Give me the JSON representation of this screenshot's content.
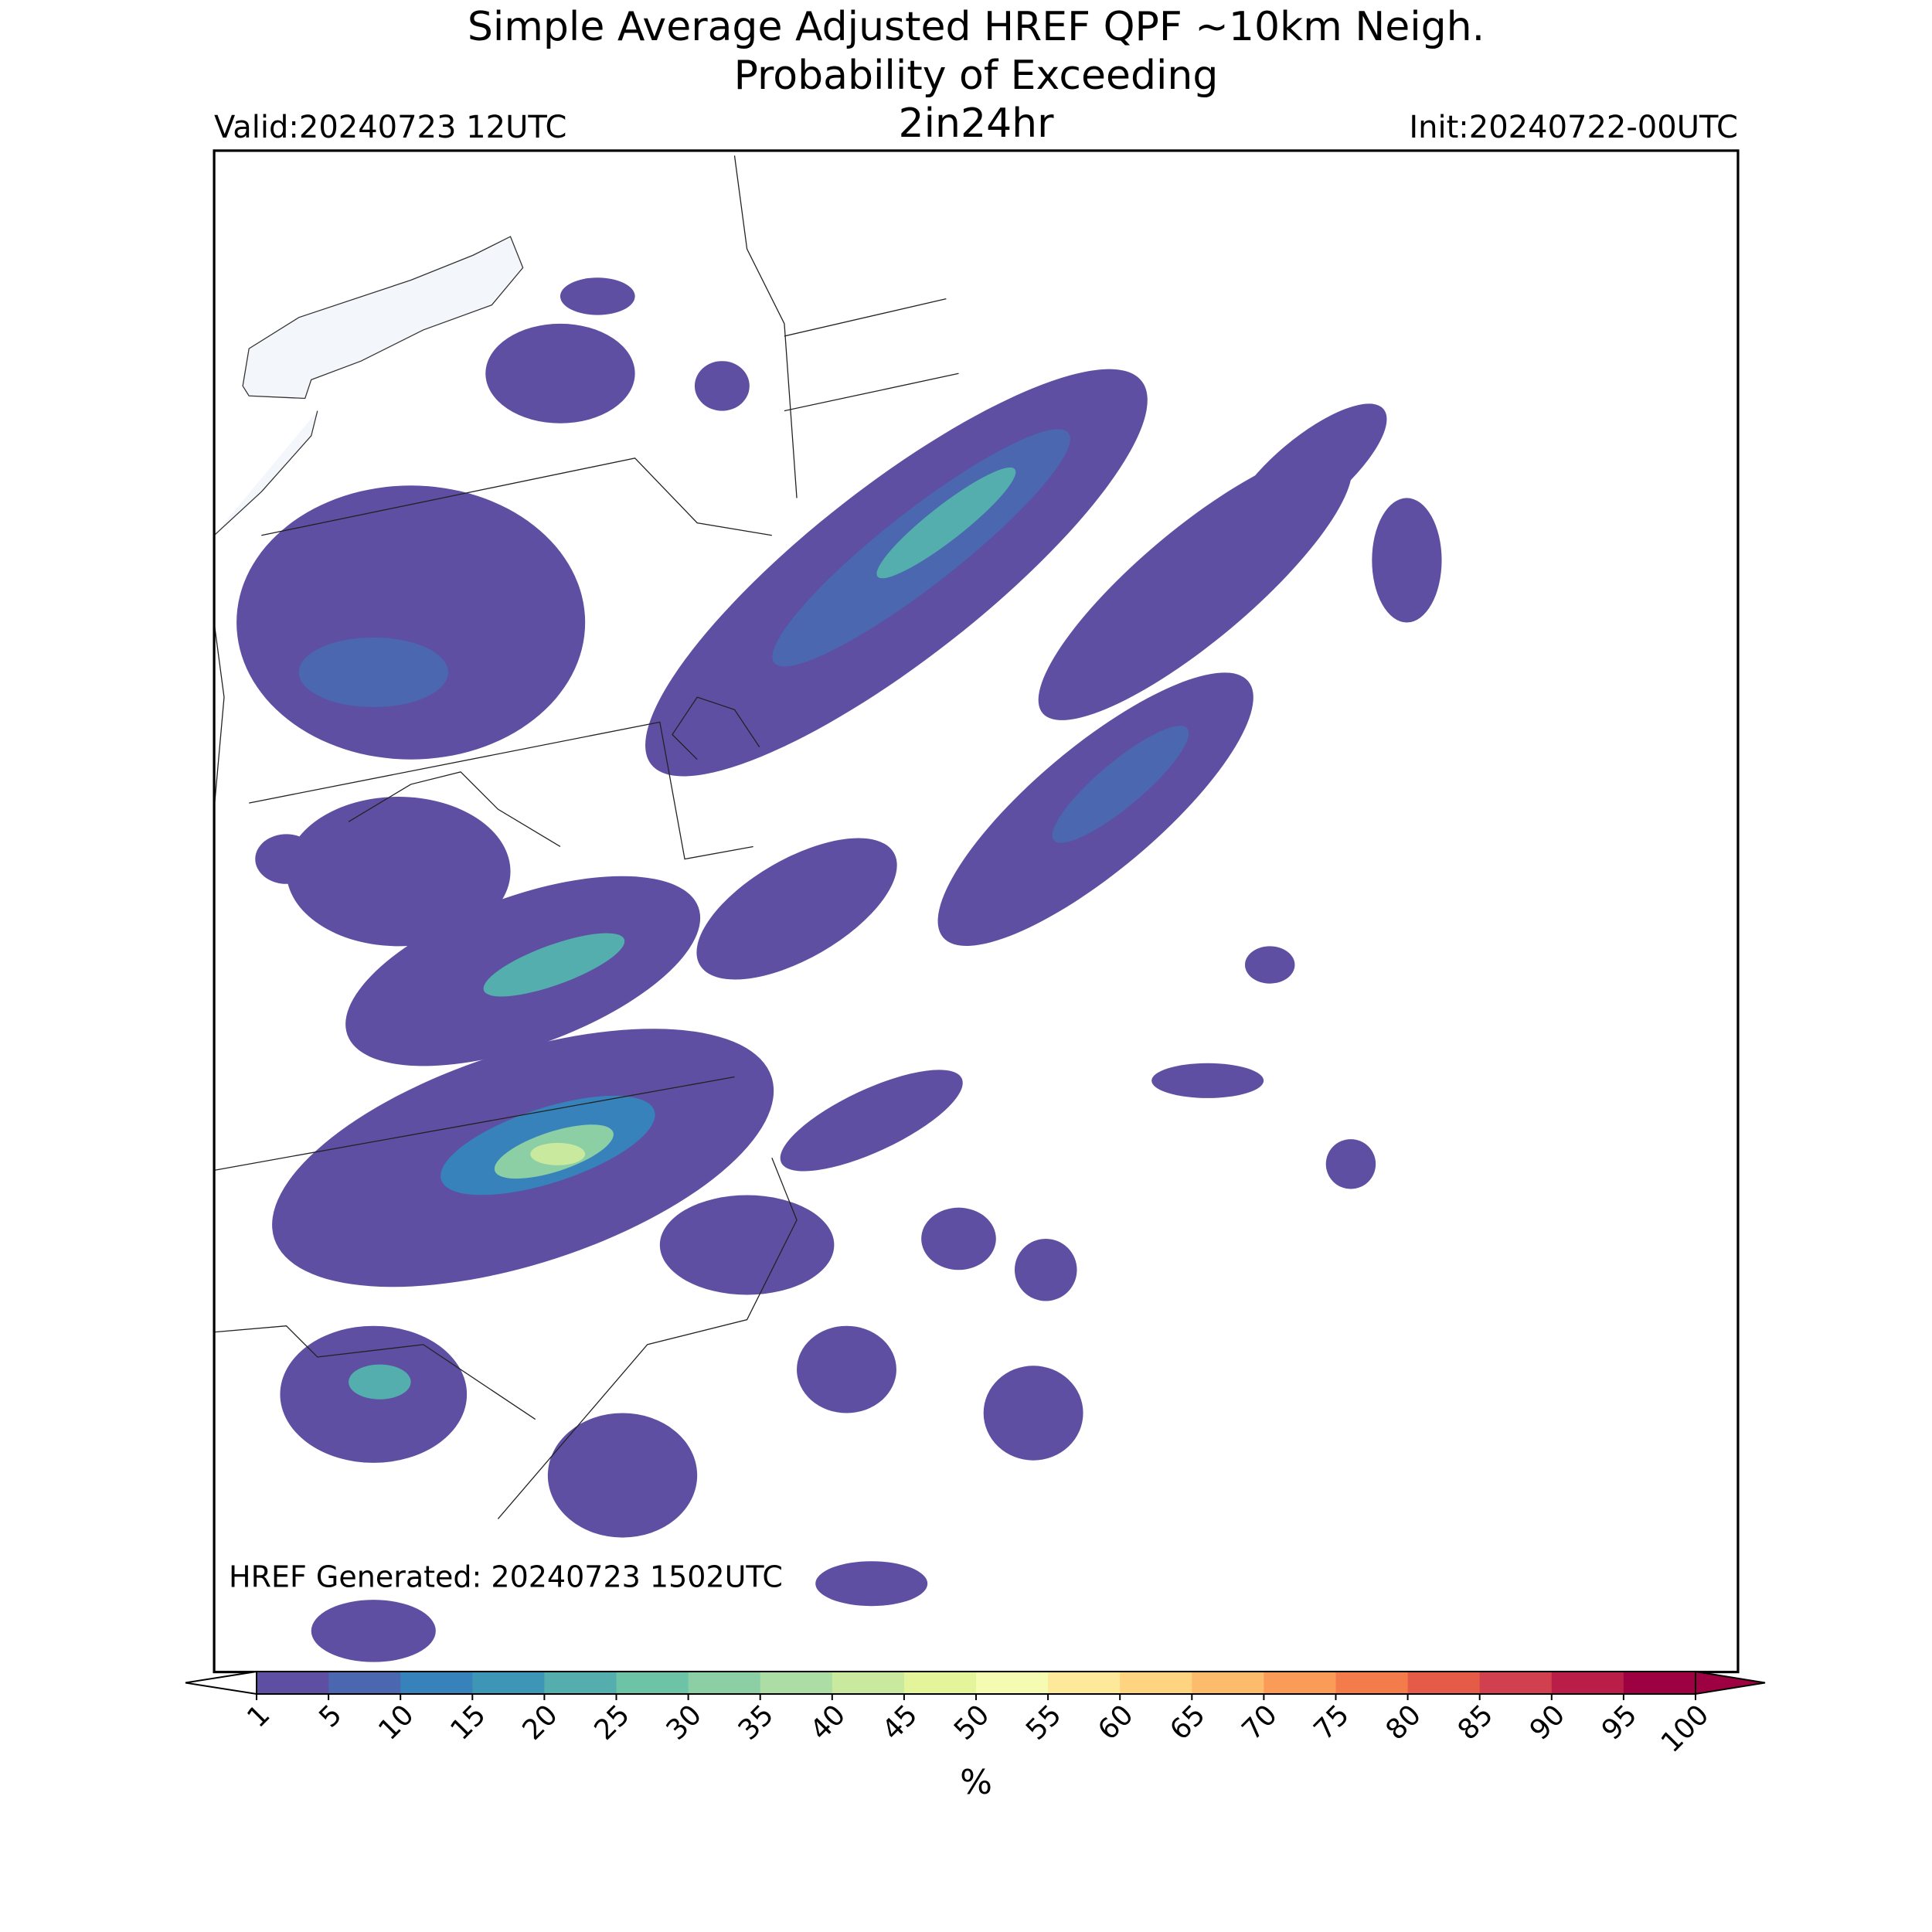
{
  "header": {
    "title": "Simple Average Adjusted HREF QPF ~10km Neigh.",
    "subtitle": "Probability of Exceeding",
    "threshold": "2in24hr",
    "valid": "Valid:20240723 12UTC",
    "init": "Init:20240722-00UTC"
  },
  "footer": {
    "generated": "HREF Generated: 20240723 1502UTC"
  },
  "colorbar": {
    "ticks": [
      1,
      5,
      10,
      15,
      20,
      25,
      30,
      35,
      40,
      45,
      50,
      55,
      60,
      65,
      70,
      75,
      80,
      85,
      90,
      95,
      100
    ],
    "colors": [
      "#5e4fa2",
      "#4a67af",
      "#3782ba",
      "#3e96b7",
      "#54aead",
      "#6cc3a5",
      "#8ccfa4",
      "#abdda4",
      "#c9e99e",
      "#e3f49a",
      "#f5fbb0",
      "#fee99a",
      "#fed481",
      "#fdbb6c",
      "#fa9b58",
      "#f47b4a",
      "#e45b48",
      "#d1404e",
      "#b91e48",
      "#9e0142"
    ],
    "under_color": "#ffffff",
    "over_color": "#9e0142",
    "label": "%"
  }
}
